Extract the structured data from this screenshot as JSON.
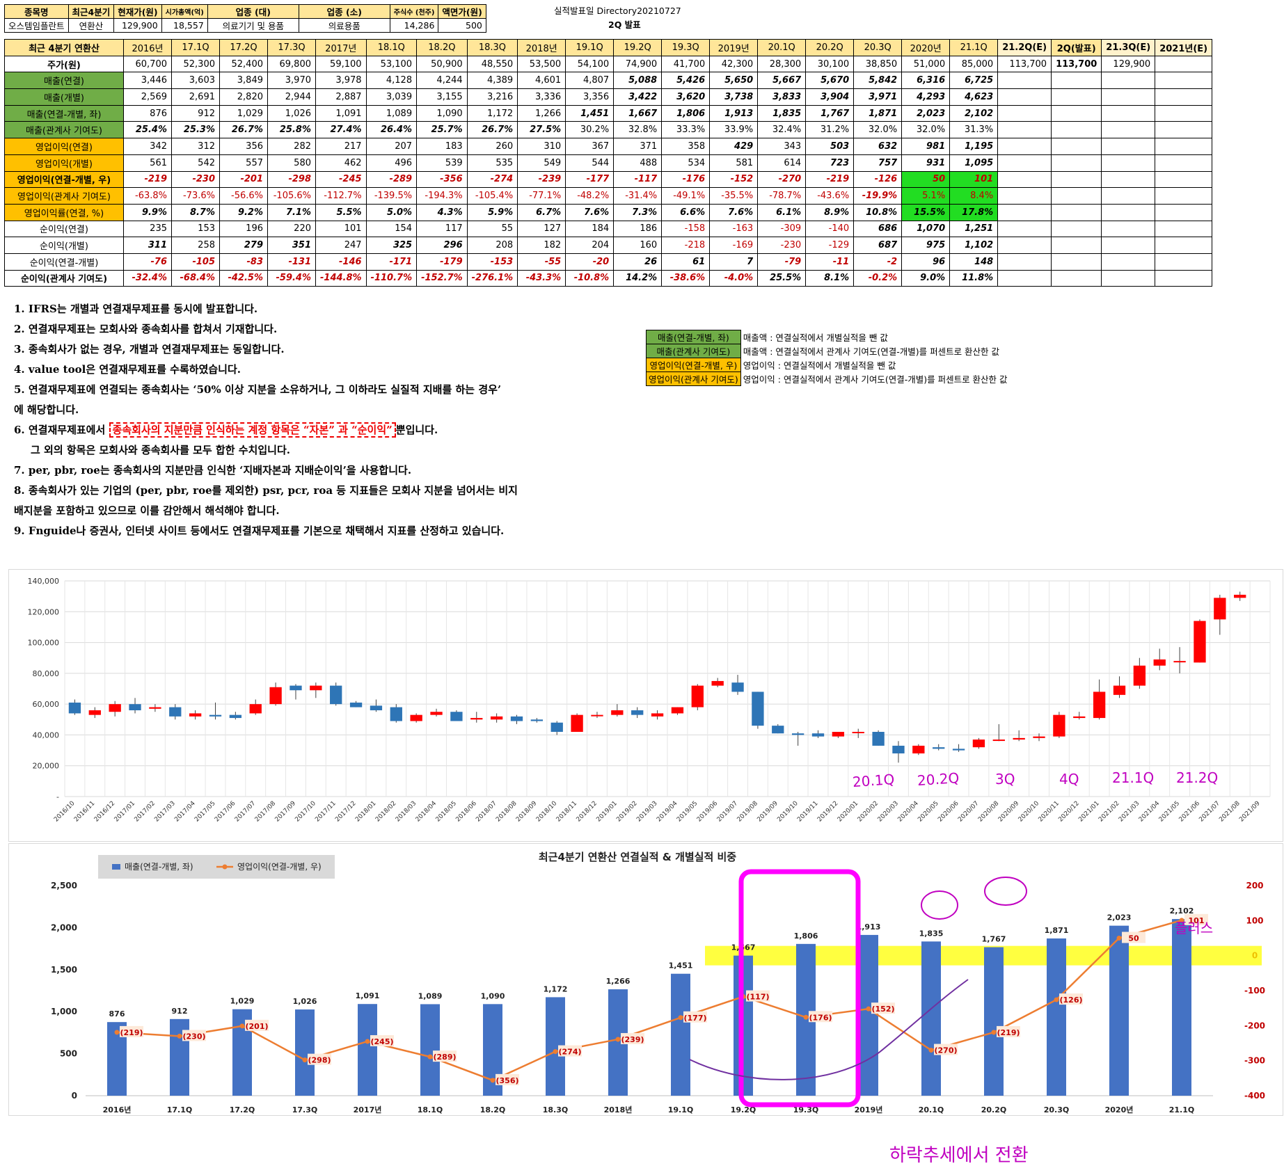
{
  "info": {
    "headers": [
      "종목명",
      "최근4분기",
      "현재가(원)",
      "시가총액(억)",
      "업종 (대)",
      "업종 (소)",
      "주식수 (천주)",
      "액면가(원)"
    ],
    "values": [
      "오스템임플란트",
      "연환산",
      "129,900",
      "18,557",
      "의료기기 및 용품",
      "의료용품",
      "14,286",
      "500"
    ],
    "release_label": "실적발표일",
    "release_date": "20210727",
    "release_note": "2Q 발표"
  },
  "table": {
    "corner": "최근 4분기 연환산",
    "columns": [
      "2016년",
      "17.1Q",
      "17.2Q",
      "17.3Q",
      "2017년",
      "18.1Q",
      "18.2Q",
      "18.3Q",
      "2018년",
      "19.1Q",
      "19.2Q",
      "19.3Q",
      "2019년",
      "20.1Q",
      "20.2Q",
      "20.3Q",
      "2020년",
      "21.1Q",
      "21.2Q(E)",
      "2Q(발표)",
      "21.3Q(E)",
      "2021년(E)"
    ],
    "rows": [
      {
        "label": "주가(원)",
        "values": [
          "60,700",
          "52,300",
          "52,400",
          "69,800",
          "59,100",
          "53,100",
          "50,900",
          "48,550",
          "53,500",
          "54,100",
          "74,900",
          "41,700",
          "42,300",
          "28,300",
          "30,100",
          "38,850",
          "51,000",
          "85,000",
          "113,700",
          "113,700",
          "129,900",
          ""
        ]
      },
      {
        "label": "매출(연결)",
        "values": [
          "3,446",
          "3,603",
          "3,849",
          "3,970",
          "3,978",
          "4,128",
          "4,244",
          "4,389",
          "4,601",
          "4,807",
          "5,088",
          "5,426",
          "5,650",
          "5,667",
          "5,670",
          "5,842",
          "6,316",
          "6,725",
          "",
          "",
          "",
          ""
        ]
      },
      {
        "label": "매출(개별)",
        "values": [
          "2,569",
          "2,691",
          "2,820",
          "2,944",
          "2,887",
          "3,039",
          "3,155",
          "3,216",
          "3,336",
          "3,356",
          "3,422",
          "3,620",
          "3,738",
          "3,833",
          "3,904",
          "3,971",
          "4,293",
          "4,623",
          "",
          "",
          "",
          ""
        ]
      },
      {
        "label": "매출(연결-개별, 좌)",
        "values": [
          "876",
          "912",
          "1,029",
          "1,026",
          "1,091",
          "1,089",
          "1,090",
          "1,172",
          "1,266",
          "1,451",
          "1,667",
          "1,806",
          "1,913",
          "1,835",
          "1,767",
          "1,871",
          "2,023",
          "2,102",
          "",
          "",
          "",
          ""
        ]
      },
      {
        "label": "매출(관계사 기여도)",
        "values": [
          "25.4%",
          "25.3%",
          "26.7%",
          "25.8%",
          "27.4%",
          "26.4%",
          "25.7%",
          "26.7%",
          "27.5%",
          "30.2%",
          "32.8%",
          "33.3%",
          "33.9%",
          "32.4%",
          "31.2%",
          "32.0%",
          "32.0%",
          "31.3%",
          "",
          "",
          "",
          ""
        ]
      },
      {
        "label": "영업이익(연결)",
        "values": [
          "342",
          "312",
          "356",
          "282",
          "217",
          "207",
          "183",
          "260",
          "310",
          "367",
          "371",
          "358",
          "429",
          "343",
          "503",
          "632",
          "981",
          "1,195",
          "",
          "",
          "",
          ""
        ]
      },
      {
        "label": "영업이익(개별)",
        "values": [
          "561",
          "542",
          "557",
          "580",
          "462",
          "496",
          "539",
          "535",
          "549",
          "544",
          "488",
          "534",
          "581",
          "614",
          "723",
          "757",
          "931",
          "1,095",
          "",
          "",
          "",
          ""
        ]
      },
      {
        "label": "영업이익(연결-개별, 우)",
        "values": [
          "-219",
          "-230",
          "-201",
          "-298",
          "-245",
          "-289",
          "-356",
          "-274",
          "-239",
          "-177",
          "-117",
          "-176",
          "-152",
          "-270",
          "-219",
          "-126",
          "50",
          "101",
          "",
          "",
          "",
          ""
        ]
      },
      {
        "label": "영업이익(관계사 기여도)",
        "values": [
          "-63.8%",
          "-73.6%",
          "-56.6%",
          "-105.6%",
          "-112.7%",
          "-139.5%",
          "-194.3%",
          "-105.4%",
          "-77.1%",
          "-48.2%",
          "-31.4%",
          "-49.1%",
          "-35.5%",
          "-78.7%",
          "-43.6%",
          "-19.9%",
          "5.1%",
          "8.4%",
          "",
          "",
          "",
          ""
        ]
      },
      {
        "label": "영업이익률(연결, %)",
        "values": [
          "9.9%",
          "8.7%",
          "9.2%",
          "7.1%",
          "5.5%",
          "5.0%",
          "4.3%",
          "5.9%",
          "6.7%",
          "7.6%",
          "7.3%",
          "6.6%",
          "7.6%",
          "6.1%",
          "8.9%",
          "10.8%",
          "15.5%",
          "17.8%",
          "",
          "",
          "",
          ""
        ]
      },
      {
        "label": "순이익(연결)",
        "values": [
          "235",
          "153",
          "196",
          "220",
          "101",
          "154",
          "117",
          "55",
          "127",
          "184",
          "186",
          "-158",
          "-163",
          "-309",
          "-140",
          "686",
          "1,070",
          "1,251",
          "",
          "",
          "",
          ""
        ]
      },
      {
        "label": "순이익(개별)",
        "values": [
          "311",
          "258",
          "279",
          "351",
          "247",
          "325",
          "296",
          "208",
          "182",
          "204",
          "160",
          "-218",
          "-169",
          "-230",
          "-129",
          "687",
          "975",
          "1,102",
          "",
          "",
          "",
          ""
        ]
      },
      {
        "label": "순이익(연결-개별)",
        "values": [
          "-76",
          "-105",
          "-83",
          "-131",
          "-146",
          "-171",
          "-179",
          "-153",
          "-55",
          "-20",
          "26",
          "61",
          "7",
          "-79",
          "-11",
          "-2",
          "96",
          "148",
          "",
          "",
          "",
          ""
        ]
      },
      {
        "label": "순이익(관계사 기여도)",
        "values": [
          "-32.4%",
          "-68.4%",
          "-42.5%",
          "-59.4%",
          "-144.8%",
          "-110.7%",
          "-152.7%",
          "-276.1%",
          "-43.3%",
          "-10.8%",
          "14.2%",
          "-38.6%",
          "-4.0%",
          "25.5%",
          "8.1%",
          "-0.2%",
          "9.0%",
          "11.8%",
          "",
          "",
          "",
          ""
        ]
      }
    ]
  },
  "notes": {
    "n1": "1. IFRS는 개별과 연결재무제표를 동시에 발표합니다.",
    "n2": "2. 연결재무제표는 모회사와 종속회사를 합쳐서 기재합니다.",
    "n3": "3. 종속회사가 없는 경우, 개별과 연결재무제표는 동일합니다.",
    "n4": "4. value tool은 연결재무제표를 수록하였습니다.",
    "n5a": "5. 연결재무제표에 연결되는 종속회사는 ‘50% 이상 지분을 소유하거나, 그 이하라도 실질적 지배를 하는 경우’",
    "n5b": "에 해당합니다.",
    "n6_pre": "6. 연결재무제표에서 ",
    "n6_hl": "종속회사의 지분만큼 인식하는 계정 항목은 “자본” 과 “순이익”",
    "n6_post": "뿐입니다.",
    "n6b": "그 외의 항목은 모회사와 종속회사를 모두 합한 수치입니다.",
    "n7": "7. per, pbr, roe는 종속회사의 지분만큼 인식한 ‘지배자본과 지배순이익’을 사용합니다.",
    "n8a": "8. 종속회사가 있는 기업의 (per, pbr, roe를 제외한) psr, pcr, roa 등 지표들은 모회사 지분을 넘어서는 비지",
    "n8b": "배지분을 포함하고 있으므로 이를 감안해서 해석해야 합니다.",
    "n9": "9. Fnguide나 증권사, 인터넷 사이트 등에서도 연결재무제표를 기본으로 채택해서 지표를 산정하고 있습니다."
  },
  "legend_notes": [
    {
      "key": "매출(연결-개별, 좌)",
      "text": "매출액 : 연결실적에서 개별실적을 뺀 값"
    },
    {
      "key": "매출(관계사 기여도)",
      "text": "매출액 : 연결실적에서 관계사 기여도(연결-개별)를 퍼센트로 환산한 값"
    },
    {
      "key": "영업이익(연결-개별, 우)",
      "text": "영업이익 : 연결실적에서 개별실적을 뺀 값"
    },
    {
      "key": "영업이익(관계사 기여도)",
      "text": "영업이익 : 연결실적에서 관계사 기여도(연결-개별)를 퍼센트로 환산한 값"
    }
  ],
  "chart_data": [
    {
      "type": "candlestick",
      "title": "",
      "ylim": [
        0,
        140000
      ],
      "yticks": [
        "-",
        "20,000",
        "40,000",
        "60,000",
        "80,000",
        "100,000",
        "120,000",
        "140,000"
      ],
      "up_color": "#ff0000",
      "down_color": "#2e75b6",
      "x": [
        "2016/10",
        "2016/11",
        "2016/12",
        "2017/01",
        "2017/02",
        "2017/03",
        "2017/04",
        "2017/05",
        "2017/06",
        "2017/07",
        "2017/08",
        "2017/09",
        "2017/10",
        "2017/11",
        "2017/12",
        "2018/01",
        "2018/02",
        "2018/03",
        "2018/04",
        "2018/05",
        "2018/06",
        "2018/07",
        "2018/08",
        "2018/09",
        "2018/10",
        "2018/11",
        "2018/12",
        "2019/01",
        "2019/02",
        "2019/03",
        "2019/04",
        "2019/05",
        "2019/06",
        "2019/07",
        "2019/08",
        "2019/09",
        "2019/10",
        "2019/11",
        "2019/12",
        "2020/01",
        "2020/02",
        "2020/03",
        "2020/04",
        "2020/05",
        "2020/06",
        "2020/07",
        "2020/08",
        "2020/09",
        "2020/10",
        "2020/11",
        "2020/12",
        "2021/01",
        "2021/02",
        "2021/03",
        "2021/04",
        "2021/05",
        "2021/06",
        "2021/07",
        "2021/08",
        "2021/09"
      ],
      "candles": [
        [
          61000,
          63000,
          53000,
          54000
        ],
        [
          53000,
          58000,
          51000,
          56000
        ],
        [
          55000,
          62000,
          52000,
          60000
        ],
        [
          60000,
          64000,
          54000,
          56000
        ],
        [
          57000,
          60000,
          55000,
          58000
        ],
        [
          58000,
          60000,
          50000,
          52000
        ],
        [
          52000,
          56000,
          50000,
          54000
        ],
        [
          53000,
          61000,
          50000,
          52000
        ],
        [
          53000,
          55000,
          50000,
          51000
        ],
        [
          54000,
          63000,
          53000,
          60000
        ],
        [
          60000,
          74000,
          59000,
          71000
        ],
        [
          72000,
          73000,
          63000,
          69000
        ],
        [
          69000,
          74000,
          64000,
          72000
        ],
        [
          72000,
          74000,
          59000,
          60000
        ],
        [
          61000,
          62000,
          58000,
          58000
        ],
        [
          59000,
          63000,
          55000,
          56000
        ],
        [
          58000,
          60000,
          48000,
          49000
        ],
        [
          49000,
          54000,
          48000,
          53000
        ],
        [
          53000,
          57000,
          52000,
          55000
        ],
        [
          55000,
          56000,
          49000,
          49000
        ],
        [
          50000,
          55000,
          48000,
          51000
        ],
        [
          50000,
          54000,
          48000,
          52000
        ],
        [
          52000,
          53000,
          47000,
          49000
        ],
        [
          50000,
          51000,
          48000,
          49000
        ],
        [
          48000,
          49000,
          40000,
          42000
        ],
        [
          42000,
          54000,
          42000,
          53000
        ],
        [
          53000,
          55000,
          51000,
          53000
        ],
        [
          53000,
          60000,
          52000,
          56000
        ],
        [
          56000,
          58000,
          51000,
          53000
        ],
        [
          52000,
          56000,
          50000,
          54000
        ],
        [
          54000,
          58000,
          53000,
          58000
        ],
        [
          58000,
          73000,
          56000,
          72000
        ],
        [
          72000,
          77000,
          71000,
          75000
        ],
        [
          74000,
          79000,
          66000,
          68000
        ],
        [
          68000,
          68000,
          44000,
          46000
        ],
        [
          46000,
          47000,
          41000,
          41000
        ],
        [
          41000,
          42000,
          33000,
          40000
        ],
        [
          41000,
          43000,
          38000,
          39000
        ],
        [
          39000,
          41000,
          38000,
          42000
        ],
        [
          42000,
          44000,
          38000,
          42000
        ],
        [
          42000,
          43000,
          33000,
          33000
        ],
        [
          33000,
          36000,
          22000,
          28000
        ],
        [
          28000,
          34000,
          27000,
          33000
        ],
        [
          32000,
          34000,
          30000,
          31000
        ],
        [
          31000,
          34000,
          29000,
          30000
        ],
        [
          32000,
          38000,
          31000,
          37000
        ],
        [
          37000,
          47000,
          36000,
          37000
        ],
        [
          37000,
          43000,
          36000,
          38000
        ],
        [
          38000,
          41000,
          36000,
          39000
        ],
        [
          39000,
          55000,
          38000,
          53000
        ],
        [
          51000,
          55000,
          50000,
          52000
        ],
        [
          51000,
          76000,
          50000,
          68000
        ],
        [
          66000,
          78000,
          64000,
          72000
        ],
        [
          72000,
          90000,
          70000,
          85000
        ],
        [
          85000,
          96000,
          82000,
          89000
        ],
        [
          88000,
          97000,
          80000,
          88000
        ],
        [
          87000,
          115000,
          87000,
          114000
        ],
        [
          115000,
          131000,
          105000,
          129000
        ],
        [
          129000,
          133000,
          127000,
          131000
        ],
        [
          null,
          null,
          null,
          null
        ]
      ],
      "annotations": [
        "20.1Q",
        "20.2Q",
        "3Q",
        "4Q",
        "21.1Q",
        "21.2Q"
      ]
    },
    {
      "type": "bar+line",
      "title": "최근4분기 연환산 연결실적 & 개별실적 비중",
      "categories": [
        "2016년",
        "17.1Q",
        "17.2Q",
        "17.3Q",
        "2017년",
        "18.1Q",
        "18.2Q",
        "18.3Q",
        "2018년",
        "19.1Q",
        "19.2Q",
        "19.3Q",
        "2019년",
        "20.1Q",
        "20.2Q",
        "20.3Q",
        "2020년",
        "21.1Q"
      ],
      "ylim_left": [
        0,
        2500
      ],
      "yticks_left": [
        "0",
        "500",
        "1,000",
        "1,500",
        "2,000",
        "2,500"
      ],
      "ylim_right": [
        -400,
        200
      ],
      "yticks_right": [
        "-400",
        "-300",
        "-200",
        "-100",
        "0",
        "100",
        "200"
      ],
      "series": [
        {
          "name": "매출(연결-개별, 좌)",
          "type": "bar",
          "axis": "left",
          "color": "#4472c4",
          "values": [
            876,
            912,
            1029,
            1026,
            1091,
            1089,
            1090,
            1172,
            1266,
            1451,
            1667,
            1806,
            1913,
            1835,
            1767,
            1871,
            2023,
            2102
          ],
          "labels": [
            "876",
            "912",
            "1,029",
            "1,026",
            "1,091",
            "1,089",
            "1,090",
            "1,172",
            "1,266",
            "1,451",
            "1,667",
            "1,806",
            "1,913",
            "1,835",
            "1,767",
            "1,871",
            "2,023",
            "2,102"
          ]
        },
        {
          "name": "영업이익(연결-개별, 우)",
          "type": "line",
          "axis": "right",
          "color": "#ed7d31",
          "values": [
            -219,
            -230,
            -201,
            -298,
            -245,
            -289,
            -356,
            -274,
            -239,
            -177,
            -117,
            -176,
            -152,
            -270,
            -219,
            -126,
            50,
            101
          ],
          "labels": [
            "(219)",
            "(230)",
            "(201)",
            "(298)",
            "(245)",
            "(289)",
            "(356)",
            "(274)",
            "(239)",
            "(177)",
            "(117)",
            "(176)",
            "(152)",
            "(270)",
            "(219)",
            "(126)",
            "50",
            "101"
          ]
        }
      ],
      "annotations": [
        "플러스",
        "하락추세에서 전환"
      ]
    }
  ]
}
